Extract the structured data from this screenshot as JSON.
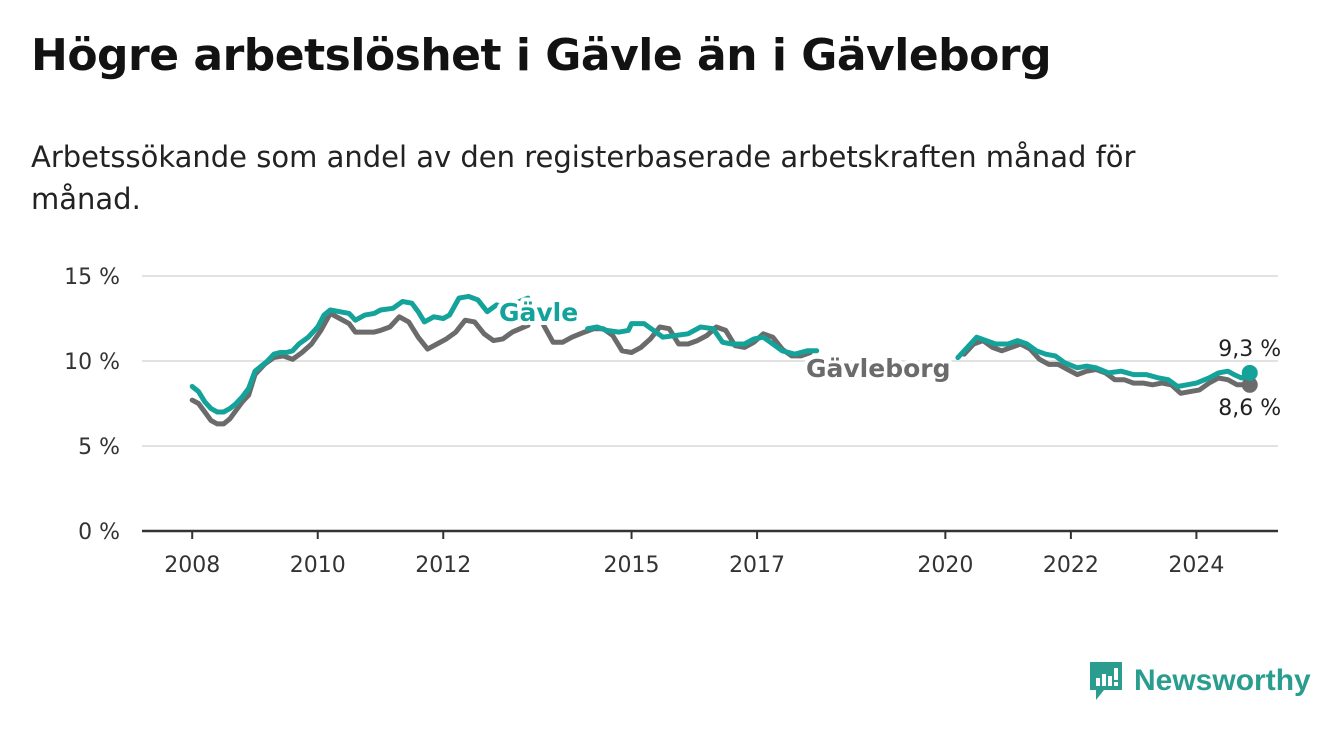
{
  "title": "Högre arbetslöshet i Gävle än i Gävleborg",
  "subtitle": "Arbetssökande som andel av den registerbaserade arbetskraften månad för månad.",
  "brand": {
    "name": "Newsworthy",
    "icon": "newsworthy-logo-icon",
    "color": "#2a9d8f"
  },
  "colors": {
    "gavle": "#14a39a",
    "gavleborg": "#6b6b6b",
    "grid": "#d9d9d9",
    "axis": "#333333"
  },
  "chart_data": {
    "type": "line",
    "y_ticks": [
      "0 %",
      "5 %",
      "10 %",
      "15 %"
    ],
    "y_tick_values": [
      0,
      5,
      10,
      15
    ],
    "x_ticks": [
      "2008",
      "2010",
      "2012",
      "2015",
      "2017",
      "2020",
      "2022",
      "2024"
    ],
    "x_tick_values": [
      2008,
      2010,
      2012,
      2015,
      2017,
      2020,
      2022,
      2024
    ],
    "ylim": [
      0,
      15
    ],
    "xlim": [
      2007.2,
      2025.3
    ],
    "grid": true,
    "series": [
      {
        "name": "Gävle",
        "key": "gavle",
        "end_label": "9,3 %",
        "points": [
          [
            2008.0,
            8.5
          ],
          [
            2008.1,
            8.2
          ],
          [
            2008.2,
            7.6
          ],
          [
            2008.3,
            7.2
          ],
          [
            2008.4,
            7.0
          ],
          [
            2008.5,
            7.0
          ],
          [
            2008.6,
            7.2
          ],
          [
            2008.7,
            7.5
          ],
          [
            2008.8,
            7.9
          ],
          [
            2008.9,
            8.4
          ],
          [
            2009.0,
            9.4
          ],
          [
            2009.2,
            10.0
          ],
          [
            2009.3,
            10.4
          ],
          [
            2009.4,
            10.5
          ],
          [
            2009.5,
            10.5
          ],
          [
            2009.6,
            10.6
          ],
          [
            2009.7,
            11.0
          ],
          [
            2009.85,
            11.4
          ],
          [
            2010.0,
            12.0
          ],
          [
            2010.1,
            12.7
          ],
          [
            2010.2,
            13.0
          ],
          [
            2010.35,
            12.9
          ],
          [
            2010.5,
            12.8
          ],
          [
            2010.6,
            12.4
          ],
          [
            2010.75,
            12.7
          ],
          [
            2010.9,
            12.8
          ],
          [
            2011.0,
            13.0
          ],
          [
            2011.2,
            13.1
          ],
          [
            2011.35,
            13.5
          ],
          [
            2011.5,
            13.4
          ],
          [
            2011.6,
            12.9
          ],
          [
            2011.7,
            12.3
          ],
          [
            2011.85,
            12.6
          ],
          [
            2012.0,
            12.5
          ],
          [
            2012.1,
            12.7
          ],
          [
            2012.25,
            13.7
          ],
          [
            2012.4,
            13.8
          ],
          [
            2012.55,
            13.6
          ],
          [
            2012.7,
            12.9
          ],
          [
            2012.85,
            13.3
          ],
          [
            2013.0,
            13.1
          ],
          [
            2013.15,
            13.4
          ],
          [
            2013.35,
            13.7
          ]
        ],
        "points_mid": [
          [
            2014.3,
            11.9
          ],
          [
            2014.45,
            12.0
          ],
          [
            2014.6,
            11.8
          ],
          [
            2014.8,
            11.7
          ],
          [
            2014.95,
            11.8
          ],
          [
            2015.0,
            12.2
          ],
          [
            2015.2,
            12.2
          ],
          [
            2015.35,
            11.8
          ],
          [
            2015.5,
            11.4
          ],
          [
            2015.7,
            11.5
          ],
          [
            2015.9,
            11.6
          ],
          [
            2016.1,
            12.0
          ],
          [
            2016.3,
            11.9
          ],
          [
            2016.45,
            11.1
          ],
          [
            2016.6,
            11.0
          ],
          [
            2016.8,
            11.0
          ],
          [
            2016.95,
            11.3
          ],
          [
            2017.1,
            11.4
          ],
          [
            2017.25,
            11.0
          ],
          [
            2017.4,
            10.6
          ],
          [
            2017.6,
            10.4
          ],
          [
            2017.8,
            10.6
          ],
          [
            2017.95,
            10.6
          ]
        ],
        "points_late": [
          [
            2020.2,
            10.2
          ],
          [
            2020.35,
            10.8
          ],
          [
            2020.5,
            11.4
          ],
          [
            2020.65,
            11.2
          ],
          [
            2020.8,
            11.0
          ],
          [
            2021.0,
            11.0
          ],
          [
            2021.15,
            11.2
          ],
          [
            2021.3,
            11.0
          ],
          [
            2021.45,
            10.6
          ],
          [
            2021.6,
            10.4
          ],
          [
            2021.75,
            10.3
          ],
          [
            2021.9,
            9.9
          ],
          [
            2022.1,
            9.6
          ],
          [
            2022.25,
            9.7
          ],
          [
            2022.4,
            9.6
          ],
          [
            2022.6,
            9.3
          ],
          [
            2022.8,
            9.4
          ],
          [
            2023.0,
            9.2
          ],
          [
            2023.2,
            9.2
          ],
          [
            2023.4,
            9.0
          ],
          [
            2023.55,
            8.9
          ],
          [
            2023.7,
            8.5
          ],
          [
            2023.85,
            8.6
          ],
          [
            2024.0,
            8.7
          ],
          [
            2024.2,
            9.0
          ],
          [
            2024.35,
            9.3
          ],
          [
            2024.5,
            9.4
          ],
          [
            2024.6,
            9.2
          ],
          [
            2024.72,
            9.0
          ],
          [
            2024.85,
            9.3
          ]
        ]
      },
      {
        "name": "Gävleborg",
        "key": "gavleborg",
        "end_label": "8,6 %",
        "points": [
          [
            2008.0,
            7.7
          ],
          [
            2008.1,
            7.5
          ],
          [
            2008.2,
            7.0
          ],
          [
            2008.3,
            6.5
          ],
          [
            2008.4,
            6.3
          ],
          [
            2008.5,
            6.3
          ],
          [
            2008.6,
            6.6
          ],
          [
            2008.7,
            7.1
          ],
          [
            2008.8,
            7.6
          ],
          [
            2008.9,
            8.0
          ],
          [
            2009.0,
            9.2
          ],
          [
            2009.15,
            9.8
          ],
          [
            2009.3,
            10.2
          ],
          [
            2009.45,
            10.3
          ],
          [
            2009.6,
            10.1
          ],
          [
            2009.75,
            10.5
          ],
          [
            2009.9,
            11.0
          ],
          [
            2010.05,
            11.8
          ],
          [
            2010.2,
            12.8
          ],
          [
            2010.35,
            12.5
          ],
          [
            2010.5,
            12.2
          ],
          [
            2010.6,
            11.7
          ],
          [
            2010.75,
            11.7
          ],
          [
            2010.9,
            11.7
          ],
          [
            2011.0,
            11.8
          ],
          [
            2011.15,
            12.0
          ],
          [
            2011.3,
            12.6
          ],
          [
            2011.45,
            12.3
          ],
          [
            2011.6,
            11.4
          ],
          [
            2011.75,
            10.7
          ],
          [
            2011.9,
            11.0
          ],
          [
            2012.05,
            11.3
          ],
          [
            2012.2,
            11.7
          ],
          [
            2012.35,
            12.4
          ],
          [
            2012.5,
            12.3
          ],
          [
            2012.65,
            11.6
          ],
          [
            2012.8,
            11.2
          ],
          [
            2012.95,
            11.3
          ],
          [
            2013.1,
            11.7
          ],
          [
            2013.35,
            12.1
          ]
        ],
        "points_mid": [
          [
            2013.6,
            12.1
          ],
          [
            2013.75,
            11.1
          ],
          [
            2013.9,
            11.1
          ],
          [
            2014.05,
            11.4
          ],
          [
            2014.25,
            11.7
          ],
          [
            2014.4,
            11.9
          ],
          [
            2014.55,
            11.9
          ],
          [
            2014.7,
            11.5
          ],
          [
            2014.85,
            10.6
          ],
          [
            2015.0,
            10.5
          ],
          [
            2015.15,
            10.8
          ],
          [
            2015.3,
            11.3
          ],
          [
            2015.45,
            12.0
          ],
          [
            2015.6,
            11.9
          ],
          [
            2015.75,
            11.0
          ],
          [
            2015.9,
            11.0
          ],
          [
            2016.05,
            11.2
          ],
          [
            2016.2,
            11.5
          ],
          [
            2016.35,
            12.0
          ],
          [
            2016.5,
            11.8
          ],
          [
            2016.65,
            10.9
          ],
          [
            2016.8,
            10.8
          ],
          [
            2016.95,
            11.1
          ],
          [
            2017.1,
            11.6
          ],
          [
            2017.25,
            11.4
          ],
          [
            2017.4,
            10.7
          ],
          [
            2017.55,
            10.3
          ],
          [
            2017.7,
            10.3
          ],
          [
            2017.85,
            10.5
          ]
        ],
        "points_late": [
          [
            2020.3,
            10.4
          ],
          [
            2020.45,
            11.0
          ],
          [
            2020.6,
            11.2
          ],
          [
            2020.75,
            10.8
          ],
          [
            2020.9,
            10.6
          ],
          [
            2021.05,
            10.8
          ],
          [
            2021.2,
            11.0
          ],
          [
            2021.35,
            10.7
          ],
          [
            2021.5,
            10.1
          ],
          [
            2021.65,
            9.8
          ],
          [
            2021.8,
            9.8
          ],
          [
            2021.95,
            9.5
          ],
          [
            2022.1,
            9.2
          ],
          [
            2022.25,
            9.4
          ],
          [
            2022.4,
            9.5
          ],
          [
            2022.55,
            9.3
          ],
          [
            2022.7,
            8.9
          ],
          [
            2022.85,
            8.9
          ],
          [
            2023.0,
            8.7
          ],
          [
            2023.15,
            8.7
          ],
          [
            2023.3,
            8.6
          ],
          [
            2023.45,
            8.7
          ],
          [
            2023.6,
            8.6
          ],
          [
            2023.75,
            8.1
          ],
          [
            2023.9,
            8.2
          ],
          [
            2024.05,
            8.3
          ],
          [
            2024.2,
            8.7
          ],
          [
            2024.35,
            9.0
          ],
          [
            2024.5,
            8.9
          ],
          [
            2024.65,
            8.6
          ],
          [
            2024.85,
            8.6
          ]
        ]
      }
    ]
  }
}
